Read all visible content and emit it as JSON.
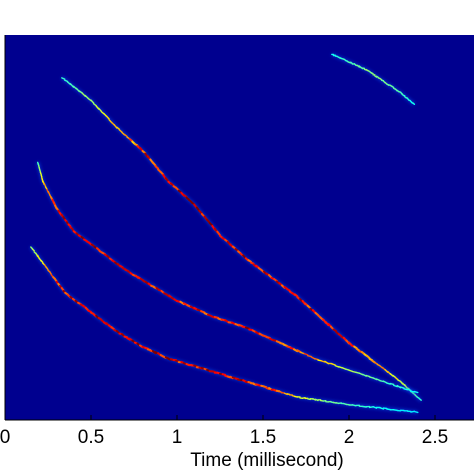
{
  "chart_data": {
    "type": "heatmap",
    "title": "",
    "xlabel": "Time (millisecond)",
    "ylabel": "",
    "xlim": [
      0,
      2.7
    ],
    "x_ticks": [
      0,
      0.5,
      1,
      1.5,
      2,
      2.5
    ],
    "x_tick_labels": [
      "0",
      "0.5",
      "1",
      "1.5",
      "2",
      "2.5"
    ],
    "grid": false,
    "colormap": "jet",
    "background_color": "#00008f",
    "series": [
      {
        "x": [
          0.33,
          0.5,
          0.65,
          0.8,
          0.95,
          1.1,
          1.25,
          1.4,
          1.55,
          1.7,
          1.85,
          2.0,
          2.15,
          2.3,
          2.42
        ],
        "y": [
          0.89,
          0.83,
          0.76,
          0.7,
          0.62,
          0.56,
          0.48,
          0.42,
          0.37,
          0.32,
          0.26,
          0.2,
          0.15,
          0.1,
          0.05
        ],
        "intensity": [
          0.15,
          0.35,
          0.55,
          0.85,
          0.95,
          0.98,
          0.95,
          0.9,
          0.88,
          0.92,
          0.88,
          0.85,
          0.7,
          0.4,
          0.15
        ]
      },
      {
        "x": [
          0.19,
          0.22,
          0.3,
          0.4,
          0.55,
          0.7,
          0.85,
          1.0,
          1.2,
          1.4,
          1.6,
          1.8,
          2.0,
          2.2,
          2.4
        ],
        "y": [
          0.67,
          0.62,
          0.55,
          0.49,
          0.44,
          0.39,
          0.35,
          0.31,
          0.27,
          0.24,
          0.2,
          0.16,
          0.13,
          0.1,
          0.07
        ],
        "intensity": [
          0.2,
          0.5,
          0.85,
          0.98,
          0.97,
          0.96,
          0.9,
          0.85,
          0.88,
          0.93,
          0.85,
          0.6,
          0.35,
          0.2,
          0.1
        ]
      },
      {
        "x": [
          0.15,
          0.25,
          0.35,
          0.5,
          0.65,
          0.8,
          0.95,
          1.1,
          1.25,
          1.4,
          1.55,
          1.7,
          1.85,
          2.0,
          2.2,
          2.4
        ],
        "y": [
          0.45,
          0.39,
          0.33,
          0.28,
          0.23,
          0.19,
          0.16,
          0.14,
          0.12,
          0.1,
          0.08,
          0.06,
          0.05,
          0.04,
          0.03,
          0.02
        ],
        "intensity": [
          0.3,
          0.6,
          0.92,
          0.96,
          0.95,
          0.93,
          0.92,
          0.9,
          0.93,
          0.94,
          0.8,
          0.45,
          0.3,
          0.2,
          0.12,
          0.08
        ]
      },
      {
        "x": [
          1.9,
          2.0,
          2.1,
          2.2,
          2.3,
          2.38
        ],
        "y": [
          0.95,
          0.93,
          0.91,
          0.88,
          0.85,
          0.82
        ],
        "intensity": [
          0.12,
          0.2,
          0.3,
          0.28,
          0.2,
          0.12
        ]
      }
    ]
  }
}
